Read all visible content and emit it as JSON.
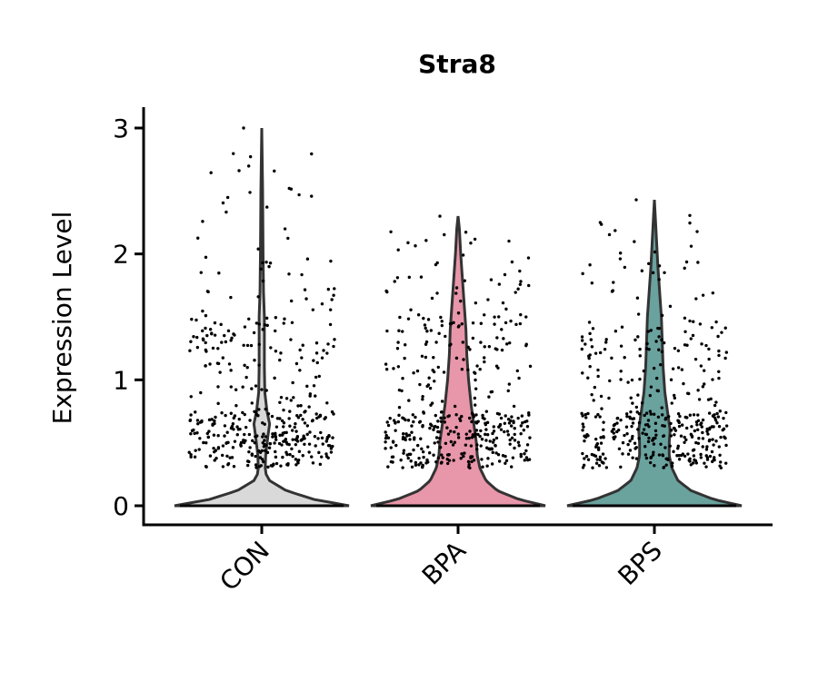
{
  "chart_data": {
    "type": "violin",
    "title": "Stra8",
    "ylabel": "Expression Level",
    "xlabel": "",
    "ylim": [
      -0.15,
      3.15
    ],
    "yticks": [
      0,
      1,
      2,
      3
    ],
    "categories": [
      "CON",
      "BPA",
      "BPS"
    ],
    "groups": [
      {
        "name": "CON",
        "color": "#d9d9d9",
        "max": 3.0,
        "profile": [
          [
            0.0,
            1.0
          ],
          [
            0.05,
            0.6
          ],
          [
            0.12,
            0.28
          ],
          [
            0.2,
            0.09
          ],
          [
            0.25,
            0.05
          ],
          [
            0.3,
            0.04
          ],
          [
            0.4,
            0.045
          ],
          [
            0.55,
            0.07
          ],
          [
            0.65,
            0.09
          ],
          [
            0.75,
            0.06
          ],
          [
            0.9,
            0.035
          ],
          [
            1.1,
            0.03
          ],
          [
            1.3,
            0.03
          ],
          [
            1.5,
            0.03
          ],
          [
            1.7,
            0.02
          ],
          [
            2.0,
            0.015
          ],
          [
            2.5,
            0.01
          ],
          [
            3.0,
            0.0
          ]
        ]
      },
      {
        "name": "BPA",
        "color": "#e896aa",
        "max": 2.3,
        "profile": [
          [
            0.0,
            1.0
          ],
          [
            0.05,
            0.7
          ],
          [
            0.12,
            0.45
          ],
          [
            0.2,
            0.32
          ],
          [
            0.3,
            0.25
          ],
          [
            0.4,
            0.22
          ],
          [
            0.5,
            0.21
          ],
          [
            0.6,
            0.19
          ],
          [
            0.8,
            0.15
          ],
          [
            1.0,
            0.12
          ],
          [
            1.2,
            0.1
          ],
          [
            1.4,
            0.09
          ],
          [
            1.6,
            0.07
          ],
          [
            1.8,
            0.05
          ],
          [
            2.0,
            0.03
          ],
          [
            2.2,
            0.015
          ],
          [
            2.3,
            0.0
          ]
        ]
      },
      {
        "name": "BPS",
        "color": "#6aa29e",
        "max": 2.43,
        "profile": [
          [
            0.0,
            1.0
          ],
          [
            0.05,
            0.68
          ],
          [
            0.12,
            0.42
          ],
          [
            0.2,
            0.27
          ],
          [
            0.3,
            0.2
          ],
          [
            0.4,
            0.17
          ],
          [
            0.5,
            0.17
          ],
          [
            0.6,
            0.18
          ],
          [
            0.75,
            0.15
          ],
          [
            0.9,
            0.12
          ],
          [
            1.1,
            0.1
          ],
          [
            1.3,
            0.09
          ],
          [
            1.5,
            0.08
          ],
          [
            1.7,
            0.06
          ],
          [
            1.9,
            0.04
          ],
          [
            2.1,
            0.025
          ],
          [
            2.3,
            0.01
          ],
          [
            2.43,
            0.0
          ]
        ]
      }
    ],
    "points_per_group": 420,
    "axis_color": "#000000",
    "outline_color": "#333333",
    "point_color": "#000000"
  }
}
